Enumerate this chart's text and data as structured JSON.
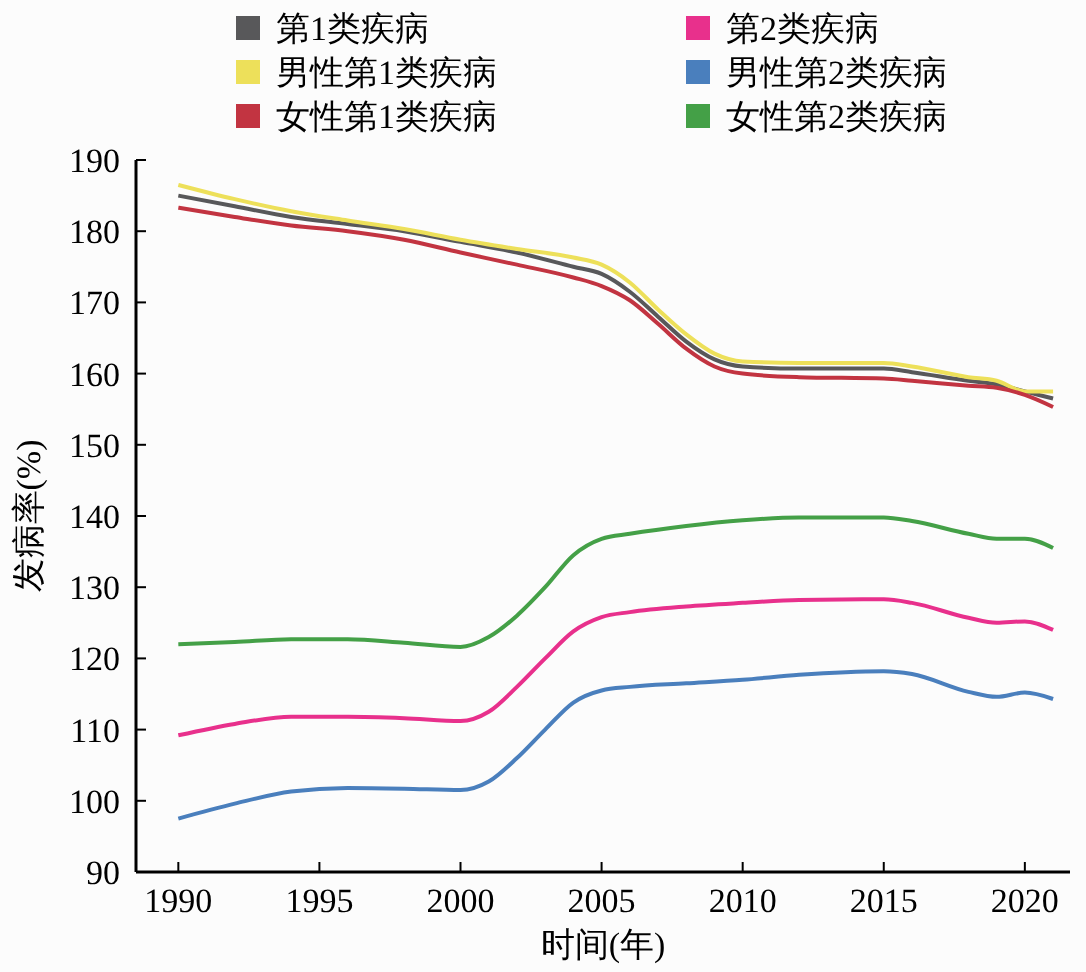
{
  "chart_data": {
    "type": "line",
    "xlabel": "时间(年)",
    "ylabel": "发病率(%)",
    "xlim": [
      1988.5,
      2021.6
    ],
    "ylim": [
      90,
      190
    ],
    "xticks": [
      1990,
      1995,
      2000,
      2005,
      2010,
      2015,
      2020
    ],
    "yticks": [
      90,
      100,
      110,
      120,
      130,
      140,
      150,
      160,
      170,
      180,
      190
    ],
    "grid": false,
    "legend": "top",
    "marker": "none",
    "line_style": "solid",
    "series": [
      {
        "name": "第1类疾病",
        "color": "#58585a",
        "x": [
          1990,
          1992,
          1994,
          1996,
          1998,
          2000,
          2002,
          2004,
          2005,
          2006,
          2007,
          2008,
          2009,
          2010,
          2012,
          2015,
          2016,
          2018,
          2019,
          2020,
          2021
        ],
        "values": [
          185,
          183.5,
          182,
          181,
          180,
          178.5,
          177,
          175,
          174,
          171.5,
          168,
          164.5,
          162,
          161,
          160.7,
          160.7,
          160.2,
          159,
          158.5,
          157.5,
          156.5
        ]
      },
      {
        "name": "第2类疾病",
        "color": "#e8308c",
        "x": [
          1990,
          1992,
          1994,
          1996,
          1998,
          2000,
          2001,
          2002,
          2003,
          2004,
          2005,
          2006,
          2008,
          2010,
          2012,
          2015,
          2016,
          2018,
          2019,
          2020,
          2021
        ],
        "values": [
          109.2,
          110.8,
          111.8,
          111.8,
          111.6,
          111.2,
          112.5,
          116,
          120,
          123.8,
          125.8,
          126.5,
          127.3,
          127.8,
          128.2,
          128.3,
          127.8,
          125.7,
          125,
          125.2,
          124
        ]
      },
      {
        "name": "男性第1类疾病",
        "color": "#ede05a",
        "x": [
          1990,
          1992,
          1994,
          1996,
          1998,
          2000,
          2002,
          2004,
          2005,
          2006,
          2007,
          2008,
          2009,
          2010,
          2012,
          2015,
          2016,
          2018,
          2019,
          2020,
          2021
        ],
        "values": [
          186.5,
          184.5,
          182.8,
          181.5,
          180.3,
          178.8,
          177.5,
          176.3,
          175.3,
          172.8,
          169,
          165.5,
          162.8,
          161.7,
          161.5,
          161.5,
          161,
          159.5,
          159,
          157.5,
          157.5
        ]
      },
      {
        "name": "男性第2类疾病",
        "color": "#4a7fbd",
        "x": [
          1990,
          1992,
          1994,
          1996,
          1998,
          2000,
          2001,
          2002,
          2003,
          2004,
          2005,
          2006,
          2008,
          2010,
          2012,
          2015,
          2016,
          2018,
          2019,
          2020,
          2021
        ],
        "values": [
          97.5,
          99.6,
          101.3,
          101.8,
          101.7,
          101.5,
          102.7,
          106,
          110,
          113.8,
          115.5,
          116,
          116.5,
          117,
          117.7,
          118.2,
          117.8,
          115.3,
          114.6,
          115.2,
          114.3
        ]
      },
      {
        "name": "女性第1类疾病",
        "color": "#c23441",
        "x": [
          1990,
          1992,
          1994,
          1996,
          1998,
          2000,
          2002,
          2004,
          2005,
          2006,
          2007,
          2008,
          2009,
          2010,
          2012,
          2015,
          2016,
          2018,
          2019,
          2020,
          2021
        ],
        "values": [
          183.3,
          182,
          180.8,
          180,
          178.8,
          177,
          175.3,
          173.5,
          172.3,
          170.3,
          167,
          163.5,
          161,
          160,
          159.5,
          159.3,
          159,
          158.3,
          158,
          157,
          155.3
        ]
      },
      {
        "name": "女性第2类疾病",
        "color": "#44a047",
        "x": [
          1990,
          1992,
          1994,
          1996,
          1998,
          2000,
          2001,
          2002,
          2003,
          2004,
          2005,
          2006,
          2008,
          2010,
          2012,
          2015,
          2016,
          2018,
          2019,
          2020,
          2021
        ],
        "values": [
          122,
          122.3,
          122.7,
          122.7,
          122.2,
          121.6,
          123,
          126,
          130,
          134.5,
          136.8,
          137.5,
          138.6,
          139.4,
          139.8,
          139.8,
          139.3,
          137.5,
          136.8,
          136.8,
          135.5
        ]
      }
    ]
  }
}
